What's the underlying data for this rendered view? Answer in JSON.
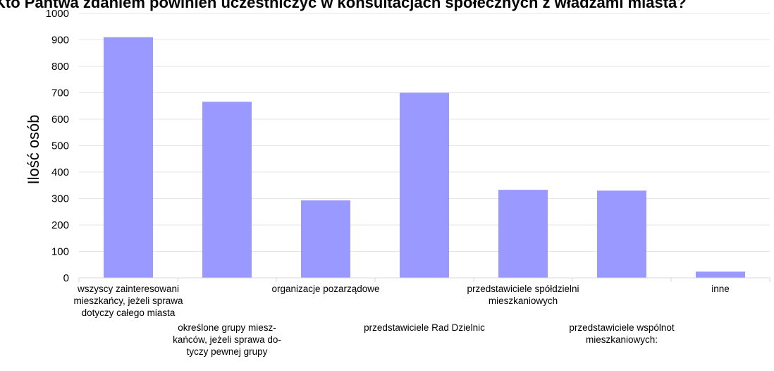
{
  "chart_data": {
    "type": "bar",
    "title": "Kto Pańtwa zdaniem powinien uczestniczyć w konsultacjach społecznych z władzami miasta?",
    "ylabel": "Ilość osób",
    "xlabel": "",
    "ylim": [
      0,
      1000
    ],
    "yticks": [
      "0",
      "100",
      "200",
      "300",
      "400",
      "500",
      "600",
      "700",
      "800",
      "900",
      "1000"
    ],
    "grid": true,
    "legend": "none",
    "bar_color": "#9999ff",
    "categories": [
      "wszyscy zainteresowani mieszkańcy, jeżeli sprawa dotyczy całego miasta",
      "określone grupy mieszkańców, jeżeli sprawa dotyczy pewnej grupy",
      "organizacje pozarządowe",
      "przedstawiciele Rad Dzielnic",
      "przedstawiciele spółdzielni mieszkaniowych",
      "przedstawiciele wspólnot mieszkaniowych:",
      "inne"
    ],
    "category_label_lines": [
      [
        "wszyscy zainteresowani",
        "mieszkańcy, jeżeli sprawa",
        "dotyczy całego miasta"
      ],
      [
        "określone grupy miesz-",
        "kańców, jeżeli sprawa do-",
        "tyczy pewnej grupy"
      ],
      [
        "organizacje pozarządowe"
      ],
      [
        "przedstawiciele Rad Dzielnic"
      ],
      [
        "przedstawiciele spółdzielni",
        "mieszkaniowych"
      ],
      [
        "przedstawiciele wspólnot",
        "mieszkaniowych:"
      ],
      [
        "inne"
      ]
    ],
    "values": [
      910,
      666,
      293,
      700,
      333,
      330,
      24
    ]
  }
}
